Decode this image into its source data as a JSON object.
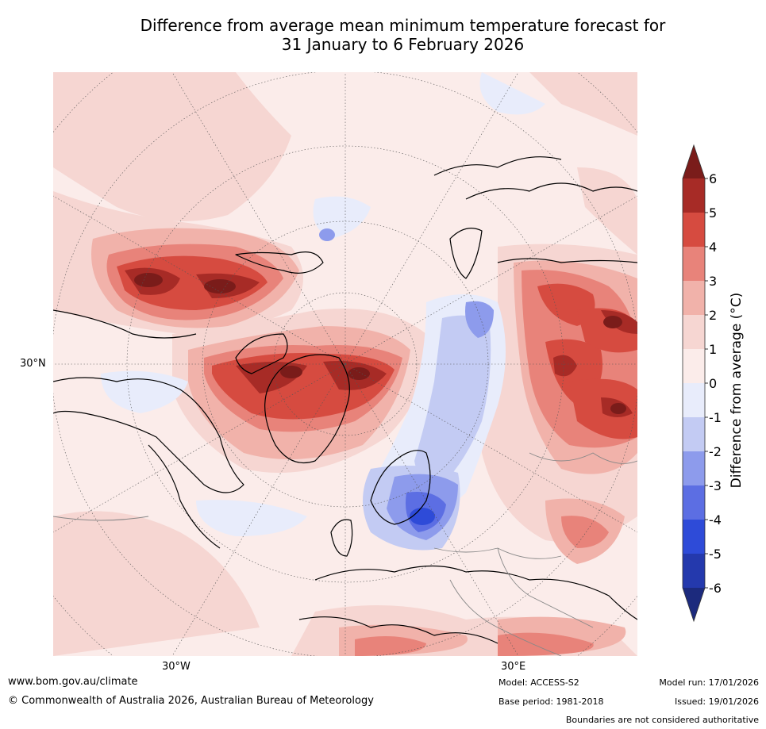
{
  "title": {
    "line1": "Difference from average mean minimum temperature forecast for",
    "line2": "31 January to 6 February 2026"
  },
  "map": {
    "lat_label": "30°N",
    "lon_labels": [
      "30°W",
      "30°E"
    ],
    "projection": "north polar stereographic"
  },
  "colorbar": {
    "label": "Difference from average (°C)",
    "ticks": [
      "6",
      "5",
      "4",
      "3",
      "2",
      "1",
      "0",
      "-1",
      "-2",
      "-3",
      "-4",
      "-5",
      "-6"
    ],
    "colors": [
      "#7a1c1a",
      "#a72b26",
      "#d64b40",
      "#e8837a",
      "#f1b2aa",
      "#f6d6d2",
      "#fbecea",
      "#e8ecfb",
      "#c3cbf3",
      "#8d9bec",
      "#5c6ee3",
      "#2e4bd8",
      "#2439ad",
      "#1c2a7d"
    ]
  },
  "footer": {
    "url": "www.bom.gov.au/climate",
    "copyright": "© Commonwealth of Australia 2026, Australian Bureau of Meteorology",
    "model": "Model: ACCESS-S2",
    "base_period": "Base period: 1981-2018",
    "model_run": "Model run: 17/01/2026",
    "issued": "Issued: 19/01/2026",
    "disclaimer": "Boundaries are not considered authoritative"
  }
}
